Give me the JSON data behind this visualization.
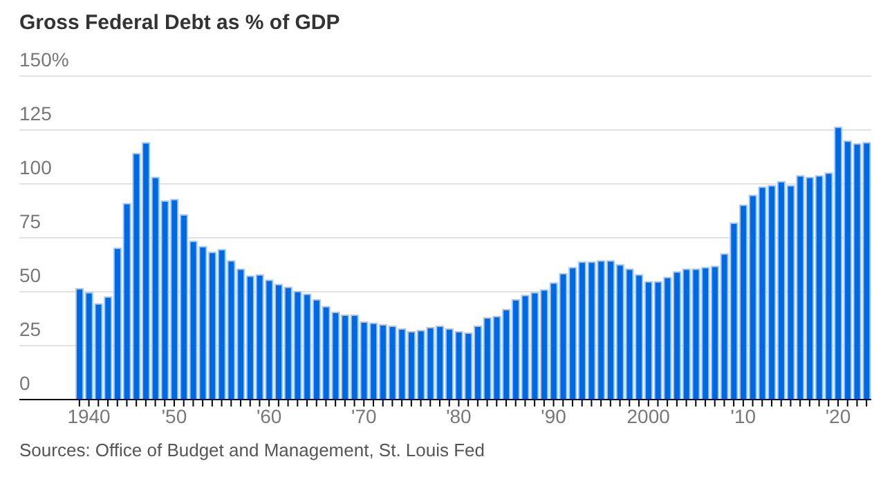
{
  "chart_data": {
    "type": "bar",
    "title": "Gross Federal Debt as % of GDP",
    "categories": [
      null,
      "1940",
      null,
      null,
      null,
      null,
      null,
      null,
      null,
      null,
      "'50",
      null,
      null,
      null,
      null,
      null,
      null,
      null,
      null,
      null,
      "'60",
      null,
      null,
      null,
      null,
      null,
      null,
      null,
      null,
      null,
      "'70",
      null,
      null,
      null,
      null,
      null,
      null,
      null,
      null,
      null,
      "'80",
      null,
      null,
      null,
      null,
      null,
      null,
      null,
      null,
      null,
      "'90",
      null,
      null,
      null,
      null,
      null,
      null,
      null,
      null,
      null,
      "2000",
      null,
      null,
      null,
      null,
      null,
      null,
      null,
      null,
      null,
      "'10",
      null,
      null,
      null,
      null,
      null,
      null,
      null,
      null,
      null,
      "'20",
      null,
      null,
      null
    ],
    "values": [
      51.4,
      49.5,
      44.3,
      47.5,
      70.1,
      90.8,
      114,
      119,
      103,
      92,
      92.7,
      85.6,
      73.3,
      70.8,
      68.2,
      69.5,
      64.3,
      60.4,
      57.2,
      57.8,
      55.3,
      53.3,
      52,
      50.1,
      48.8,
      46.2,
      43,
      40.4,
      39.1,
      39.1,
      35.9,
      35.3,
      34.6,
      34,
      32.7,
      31.4,
      32,
      33.3,
      34,
      32.7,
      31.4,
      30.8,
      34,
      37.8,
      38.5,
      41.7,
      46.2,
      48.2,
      49.5,
      50.8,
      54,
      58.3,
      61.1,
      63.7,
      63.7,
      64.3,
      64.3,
      62.4,
      60.4,
      57.8,
      54.6,
      54.6,
      56.6,
      59.1,
      60.4,
      60.4,
      61.1,
      61.7,
      67.5,
      81.7,
      90.1,
      94.6,
      98.5,
      99.1,
      101,
      99.1,
      103.7,
      103,
      103.7,
      105,
      126.2,
      119.8,
      118.5,
      119.1
    ],
    "color": "#0068e0",
    "ylim": [
      0,
      150
    ],
    "yticks": [
      0,
      25,
      50,
      75,
      100,
      125,
      {
        "value": 150,
        "label": "150%"
      }
    ],
    "grid": "y",
    "annotations": [
      "Sources: Office of Budget and Management, St. Louis Fed"
    ]
  }
}
